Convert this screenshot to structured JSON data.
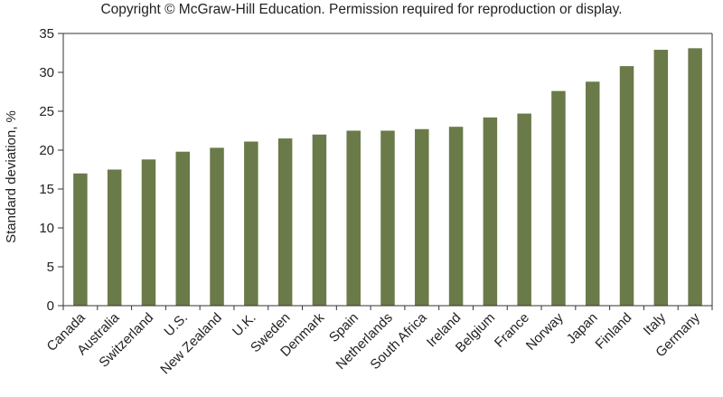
{
  "copyright": "Copyright © McGraw-Hill Education. Permission required for reproduction or display.",
  "chart_data": {
    "type": "bar",
    "title": "",
    "xlabel": "",
    "ylabel": "Standard deviation, %",
    "ylim": [
      0,
      35
    ],
    "yticks": [
      0,
      5,
      10,
      15,
      20,
      25,
      30,
      35
    ],
    "grid": false,
    "bar_color": "#6a7a49",
    "categories": [
      "Canada",
      "Australia",
      "Switzerland",
      "U.S.",
      "New Zealand",
      "U.K.",
      "Sweden",
      "Denmark",
      "Spain",
      "Netherlands",
      "South Africa",
      "Ireland",
      "Belgium",
      "France",
      "Norway",
      "Japan",
      "Finland",
      "Italy",
      "Germany"
    ],
    "values": [
      17.0,
      17.5,
      18.8,
      19.8,
      20.3,
      21.1,
      21.5,
      22.0,
      22.5,
      22.5,
      22.7,
      23.0,
      24.2,
      24.7,
      27.6,
      28.8,
      30.8,
      32.9,
      33.1
    ]
  }
}
